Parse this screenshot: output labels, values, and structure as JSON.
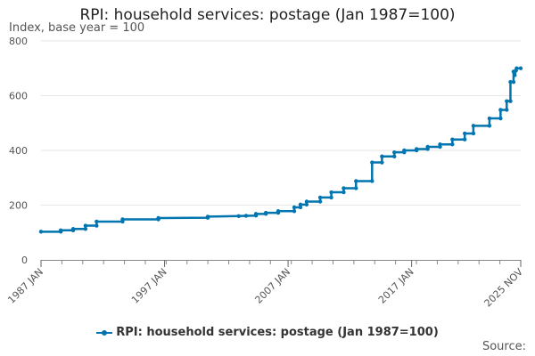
{
  "chart_data": {
    "type": "line",
    "title": "RPI: household services: postage (Jan 1987=100)",
    "ylabel": "Index, base year = 100",
    "xlabel": "",
    "ylim": [
      0,
      800
    ],
    "yticks": [
      0,
      200,
      400,
      600,
      800
    ],
    "xticks": [
      {
        "label": "1987 JAN",
        "year": 1987.0
      },
      {
        "label": "1997 JAN",
        "year": 1997.0
      },
      {
        "label": "2007 JAN",
        "year": 2007.0
      },
      {
        "label": "2017 JAN",
        "year": 2017.0
      },
      {
        "label": "2025 NOV",
        "year": 2025.833
      }
    ],
    "xrange": [
      1987.0,
      2025.833
    ],
    "grid": true,
    "legend_position": "bottom",
    "source_label": "Source:",
    "series": [
      {
        "name": "RPI: household services: postage (Jan 1987=100)",
        "color": "#0075b0",
        "points": [
          [
            1987.0,
            103
          ],
          [
            1988.6,
            103
          ],
          [
            1988.6,
            108
          ],
          [
            1989.6,
            108
          ],
          [
            1989.6,
            113
          ],
          [
            1990.6,
            113
          ],
          [
            1990.6,
            125
          ],
          [
            1991.5,
            125
          ],
          [
            1991.5,
            140
          ],
          [
            1993.6,
            140
          ],
          [
            1993.6,
            148
          ],
          [
            1996.5,
            148
          ],
          [
            1996.5,
            153
          ],
          [
            2000.5,
            154
          ],
          [
            2000.5,
            158
          ],
          [
            2003.0,
            160
          ],
          [
            2003.6,
            161
          ],
          [
            2004.4,
            162
          ],
          [
            2004.4,
            168
          ],
          [
            2005.2,
            168
          ],
          [
            2005.2,
            172
          ],
          [
            2006.2,
            172
          ],
          [
            2006.2,
            178
          ],
          [
            2007.5,
            178
          ],
          [
            2007.5,
            192
          ],
          [
            2008.0,
            192
          ],
          [
            2008.0,
            202
          ],
          [
            2008.5,
            202
          ],
          [
            2008.5,
            213
          ],
          [
            2009.6,
            213
          ],
          [
            2009.6,
            228
          ],
          [
            2010.5,
            228
          ],
          [
            2010.5,
            247
          ],
          [
            2011.5,
            247
          ],
          [
            2011.5,
            262
          ],
          [
            2012.5,
            262
          ],
          [
            2012.5,
            288
          ],
          [
            2013.8,
            288
          ],
          [
            2013.8,
            356
          ],
          [
            2014.6,
            356
          ],
          [
            2014.6,
            378
          ],
          [
            2015.6,
            378
          ],
          [
            2015.6,
            393
          ],
          [
            2016.4,
            393
          ],
          [
            2016.4,
            400
          ],
          [
            2017.4,
            400
          ],
          [
            2017.4,
            405
          ],
          [
            2018.3,
            405
          ],
          [
            2018.3,
            413
          ],
          [
            2019.3,
            413
          ],
          [
            2019.3,
            422
          ],
          [
            2020.3,
            422
          ],
          [
            2020.3,
            440
          ],
          [
            2021.3,
            440
          ],
          [
            2021.3,
            462
          ],
          [
            2022.0,
            462
          ],
          [
            2022.0,
            490
          ],
          [
            2023.3,
            490
          ],
          [
            2023.3,
            517
          ],
          [
            2024.2,
            517
          ],
          [
            2024.2,
            548
          ],
          [
            2024.7,
            548
          ],
          [
            2024.7,
            580
          ],
          [
            2025.0,
            580
          ],
          [
            2025.0,
            650
          ],
          [
            2025.25,
            650
          ],
          [
            2025.25,
            688
          ],
          [
            2025.35,
            675
          ],
          [
            2025.45,
            692
          ],
          [
            2025.5,
            700
          ],
          [
            2025.833,
            700
          ]
        ]
      }
    ]
  }
}
